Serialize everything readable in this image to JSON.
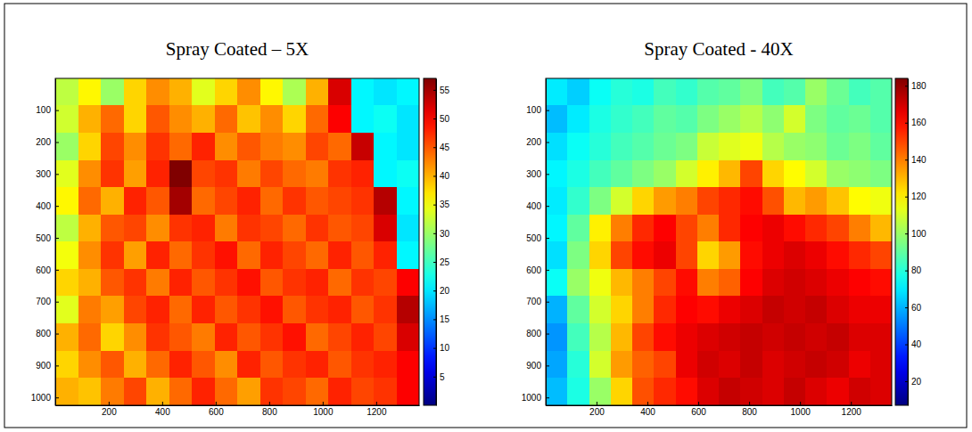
{
  "chart_data": [
    {
      "type": "heatmap",
      "title": "Spray Coated – 5X",
      "x": [
        43,
        128,
        213,
        298,
        383,
        468,
        553,
        638,
        723,
        808,
        893,
        978,
        1063,
        1148,
        1233,
        1318
      ],
      "y": [
        43,
        128,
        213,
        299,
        384,
        469,
        555,
        640,
        725,
        811,
        896,
        981
      ],
      "values": [
        [
          32,
          36,
          30,
          38,
          42,
          40,
          34,
          38,
          42,
          36,
          31,
          40,
          52,
          21,
          20,
          21
        ],
        [
          33,
          40,
          44,
          38,
          45,
          42,
          40,
          44,
          39,
          42,
          38,
          44,
          50,
          21,
          22,
          20
        ],
        [
          30,
          38,
          46,
          42,
          47,
          44,
          48,
          42,
          45,
          43,
          42,
          46,
          44,
          53,
          21,
          20
        ],
        [
          34,
          42,
          47,
          41,
          48,
          57,
          46,
          47,
          43,
          46,
          44,
          43,
          47,
          48,
          21,
          22
        ],
        [
          36,
          44,
          40,
          48,
          45,
          55,
          44,
          46,
          48,
          44,
          47,
          45,
          46,
          47,
          54,
          21
        ],
        [
          32,
          40,
          45,
          46,
          42,
          47,
          48,
          43,
          47,
          46,
          44,
          47,
          45,
          46,
          52,
          20
        ],
        [
          35,
          42,
          47,
          41,
          48,
          44,
          47,
          49,
          44,
          48,
          46,
          44,
          48,
          45,
          48,
          21
        ],
        [
          38,
          40,
          45,
          47,
          43,
          48,
          45,
          47,
          49,
          45,
          47,
          48,
          44,
          47,
          46,
          50
        ],
        [
          34,
          43,
          41,
          46,
          48,
          44,
          48,
          45,
          47,
          49,
          45,
          47,
          48,
          45,
          47,
          54
        ],
        [
          40,
          44,
          38,
          42,
          47,
          45,
          43,
          48,
          45,
          47,
          49,
          44,
          46,
          48,
          46,
          52
        ],
        [
          38,
          42,
          45,
          40,
          44,
          48,
          45,
          42,
          48,
          45,
          47,
          48,
          45,
          47,
          48,
          50
        ],
        [
          40,
          39,
          43,
          46,
          40,
          44,
          48,
          44,
          41,
          47,
          46,
          44,
          48,
          46,
          47,
          50
        ]
      ],
      "xlim": [
        0.5,
        1360.5
      ],
      "ylim": [
        0.5,
        1024.5
      ],
      "xticks": [
        200,
        400,
        600,
        800,
        1000,
        1200
      ],
      "yticks": [
        100,
        200,
        300,
        400,
        500,
        600,
        700,
        800,
        900,
        1000
      ],
      "colorbar": {
        "range": [
          0,
          57
        ],
        "ticks": [
          5,
          10,
          15,
          20,
          25,
          30,
          35,
          40,
          45,
          50,
          55
        ]
      }
    },
    {
      "type": "heatmap",
      "title": "Spray Coated - 40X",
      "x": [
        43,
        128,
        213,
        298,
        383,
        468,
        553,
        638,
        723,
        808,
        893,
        978,
        1063,
        1148,
        1233,
        1318
      ],
      "y": [
        43,
        128,
        213,
        299,
        384,
        469,
        555,
        640,
        725,
        811,
        896,
        981
      ],
      "values": [
        [
          70,
          65,
          75,
          80,
          78,
          85,
          82,
          88,
          90,
          95,
          85,
          88,
          100,
          92,
          85,
          88
        ],
        [
          62,
          70,
          78,
          82,
          85,
          90,
          88,
          95,
          100,
          105,
          98,
          110,
          95,
          90,
          92,
          88
        ],
        [
          68,
          75,
          80,
          85,
          88,
          92,
          95,
          108,
          112,
          115,
          105,
          100,
          98,
          92,
          95,
          90
        ],
        [
          72,
          78,
          85,
          90,
          95,
          100,
          110,
          120,
          130,
          150,
          125,
          118,
          110,
          100,
          98,
          95
        ],
        [
          70,
          82,
          95,
          110,
          125,
          135,
          140,
          150,
          155,
          160,
          148,
          130,
          135,
          128,
          118,
          115
        ],
        [
          72,
          90,
          120,
          140,
          155,
          162,
          150,
          140,
          155,
          162,
          165,
          160,
          155,
          150,
          140,
          130
        ],
        [
          68,
          95,
          125,
          150,
          160,
          165,
          150,
          125,
          135,
          160,
          165,
          168,
          165,
          160,
          155,
          150
        ],
        [
          75,
          100,
          115,
          130,
          140,
          150,
          160,
          140,
          145,
          162,
          168,
          170,
          168,
          165,
          162,
          160
        ],
        [
          60,
          90,
          110,
          125,
          140,
          155,
          162,
          160,
          165,
          168,
          172,
          170,
          172,
          168,
          165,
          165
        ],
        [
          55,
          85,
          105,
          130,
          150,
          160,
          165,
          168,
          170,
          172,
          170,
          172,
          170,
          172,
          168,
          168
        ],
        [
          58,
          80,
          110,
          135,
          145,
          150,
          165,
          170,
          168,
          172,
          168,
          170,
          172,
          170,
          165,
          168
        ],
        [
          62,
          78,
          100,
          125,
          148,
          155,
          160,
          168,
          172,
          170,
          168,
          172,
          168,
          165,
          170,
          168
        ]
      ],
      "xlim": [
        0.5,
        1360.5
      ],
      "ylim": [
        0.5,
        1024.5
      ],
      "xticks": [
        200,
        400,
        600,
        800,
        1000,
        1200
      ],
      "yticks": [
        100,
        200,
        300,
        400,
        500,
        600,
        700,
        800,
        900,
        1000
      ],
      "colorbar": {
        "range": [
          7,
          184
        ],
        "ticks": [
          20,
          40,
          60,
          80,
          100,
          120,
          140,
          160,
          180
        ]
      }
    }
  ]
}
